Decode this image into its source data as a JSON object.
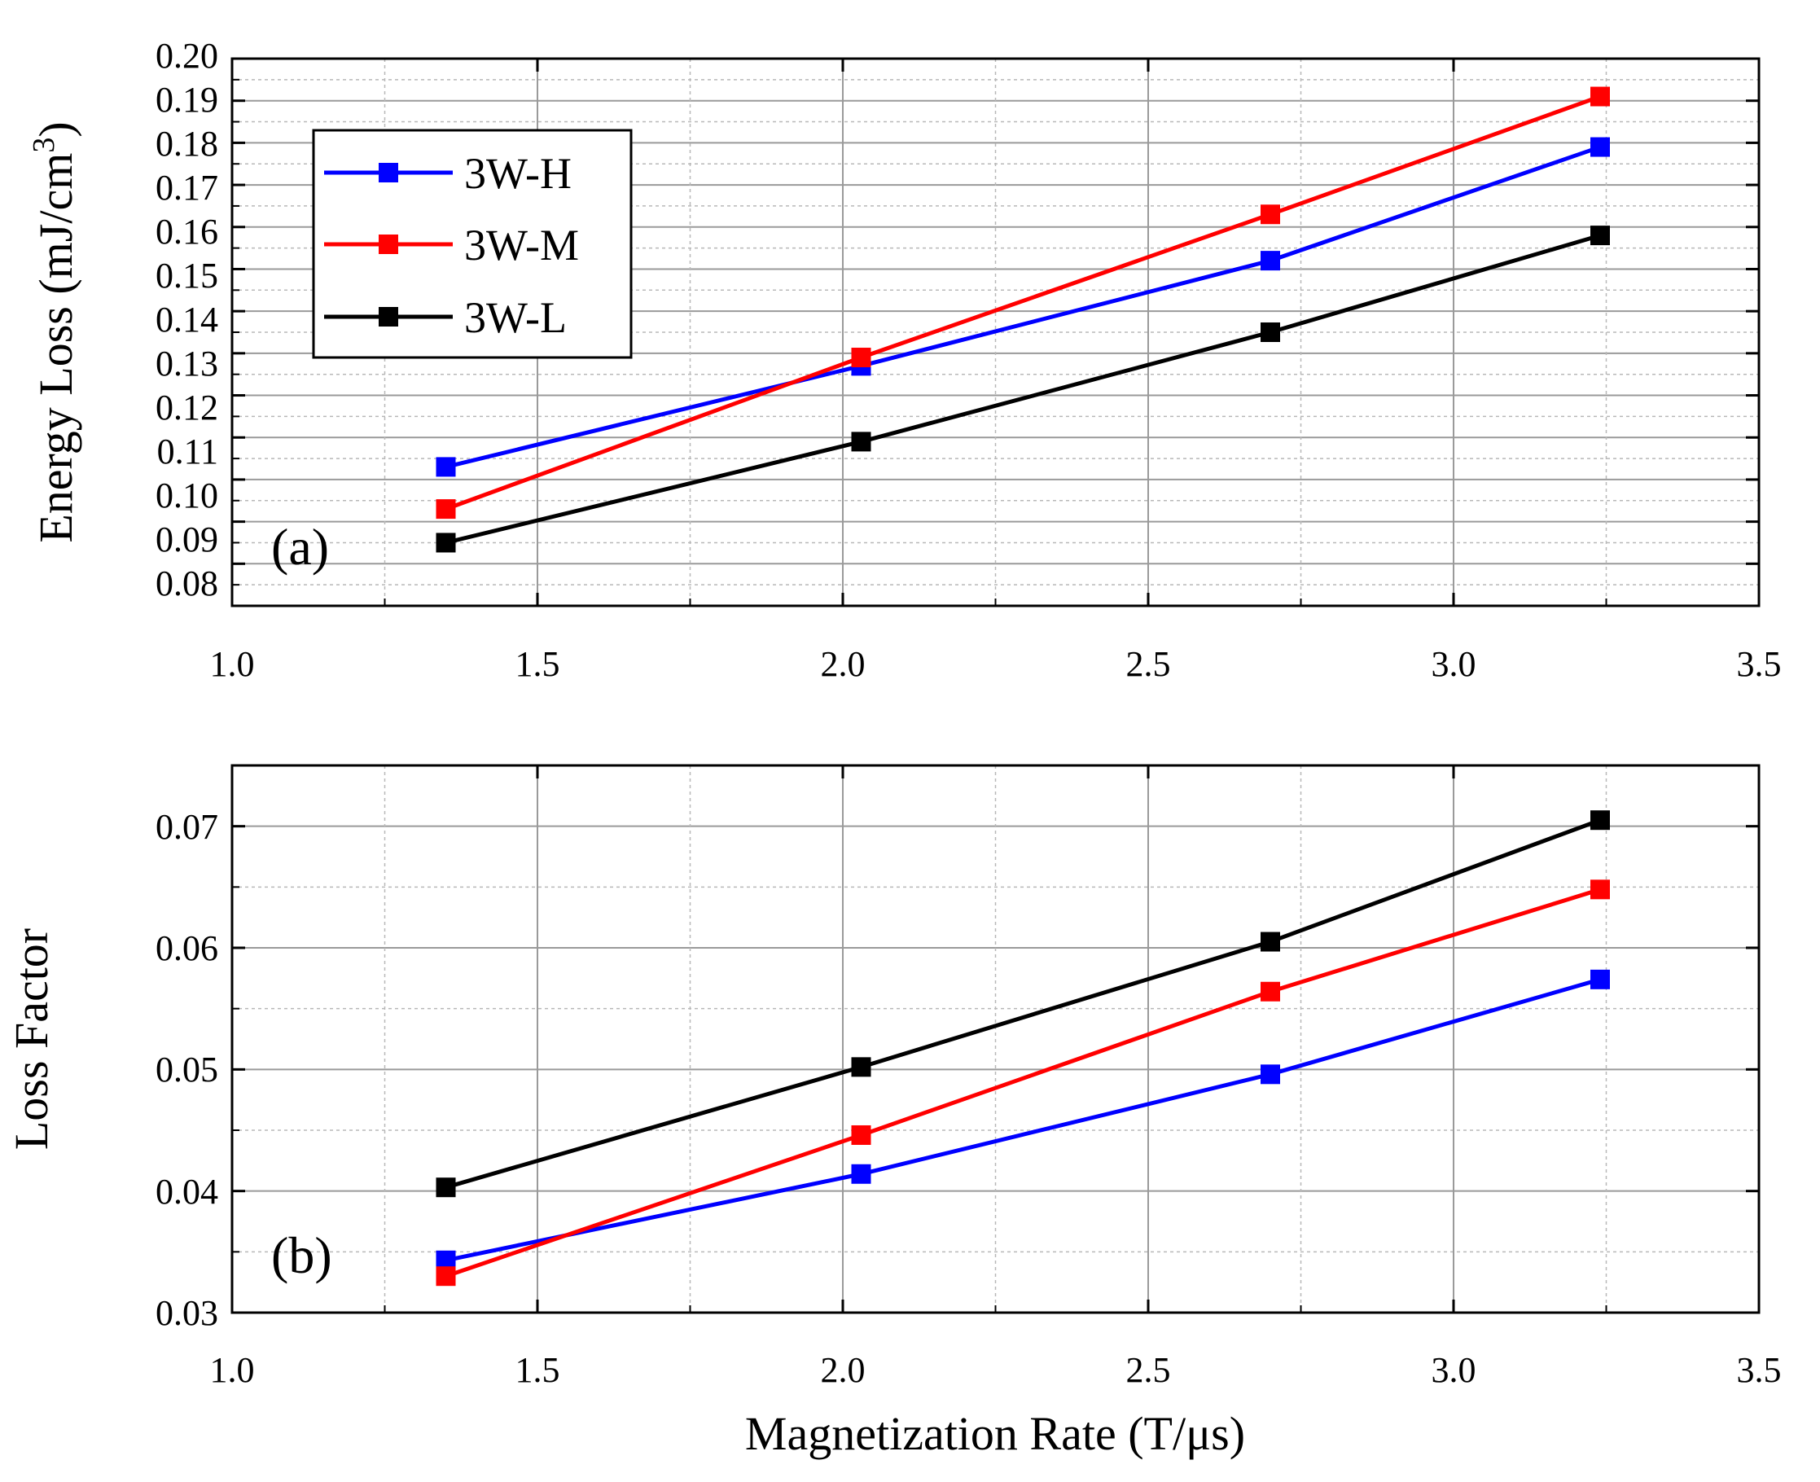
{
  "chart_data": [
    {
      "type": "line",
      "panel_label": "(a)",
      "xlabel": "",
      "ylabel": "Energy Loss (mJ/cm",
      "ylabel_superscript": "3",
      "ylabel_close": ")",
      "xlim": [
        1.0,
        3.5
      ],
      "ylim": [
        0.07,
        0.2
      ],
      "xticks": [
        1.0,
        1.5,
        2.0,
        2.5,
        3.0,
        3.5
      ],
      "xtick_labels": [
        "1.0",
        "1.5",
        "2.0",
        "2.5",
        "3.0",
        "3.5"
      ],
      "yticks": [
        0.08,
        0.09,
        0.1,
        0.11,
        0.12,
        0.13,
        0.14,
        0.15,
        0.16,
        0.17,
        0.18,
        0.19,
        0.2
      ],
      "ytick_labels": [
        "0.08",
        "0.09",
        "0.10",
        "0.11",
        "0.12",
        "0.13",
        "0.14",
        "0.15",
        "0.16",
        "0.17",
        "0.18",
        "0.19",
        "0.20"
      ],
      "grid": true,
      "legend_position": "top-left",
      "x": [
        1.35,
        2.03,
        2.7,
        3.24
      ],
      "series": [
        {
          "name": "3W-H",
          "color": "#0000ff",
          "values": [
            0.103,
            0.127,
            0.152,
            0.179
          ]
        },
        {
          "name": "3W-M",
          "color": "#ff0000",
          "values": [
            0.093,
            0.129,
            0.163,
            0.191
          ]
        },
        {
          "name": "3W-L",
          "color": "#000000",
          "values": [
            0.085,
            0.109,
            0.135,
            0.158
          ]
        }
      ]
    },
    {
      "type": "line",
      "panel_label": "(b)",
      "xlabel": "Magnetization Rate (T/μs)",
      "ylabel": "Loss Factor",
      "xlim": [
        1.0,
        3.5
      ],
      "ylim": [
        0.03,
        0.075
      ],
      "xticks": [
        1.0,
        1.5,
        2.0,
        2.5,
        3.0,
        3.5
      ],
      "xtick_labels": [
        "1.0",
        "1.5",
        "2.0",
        "2.5",
        "3.0",
        "3.5"
      ],
      "yticks": [
        0.03,
        0.04,
        0.05,
        0.06,
        0.07
      ],
      "ytick_labels": [
        "0.03",
        "0.04",
        "0.05",
        "0.06",
        "0.07"
      ],
      "grid": true,
      "x": [
        1.35,
        2.03,
        2.7,
        3.24
      ],
      "series": [
        {
          "name": "3W-H",
          "color": "#0000ff",
          "values": [
            0.0343,
            0.0414,
            0.0496,
            0.0574
          ]
        },
        {
          "name": "3W-M",
          "color": "#ff0000",
          "values": [
            0.033,
            0.0446,
            0.0564,
            0.0648
          ]
        },
        {
          "name": "3W-L",
          "color": "#000000",
          "values": [
            0.0403,
            0.0502,
            0.0605,
            0.0705
          ]
        }
      ]
    }
  ]
}
